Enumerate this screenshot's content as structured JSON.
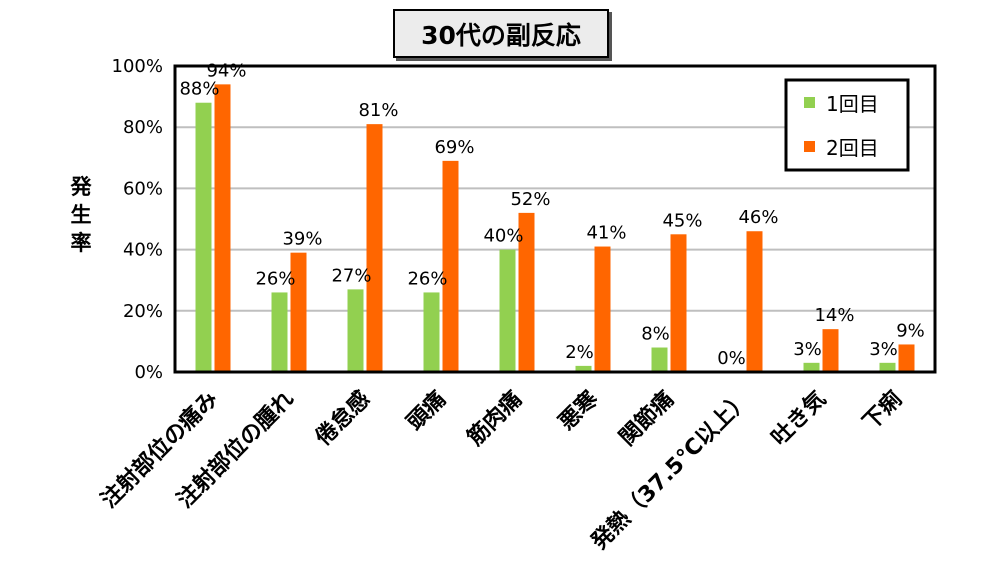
{
  "chart_data": {
    "type": "bar",
    "title": "30代の副反応",
    "ylabel": "発生率",
    "ylim": [
      0,
      1.0
    ],
    "yticks": [
      "0%",
      "20%",
      "40%",
      "60%",
      "80%",
      "100%"
    ],
    "legend_position": "top-right",
    "categories": [
      "注射部位の痛み",
      "注射部位の腫れ",
      "倦怠感",
      "頭痛",
      "筋肉痛",
      "悪寒",
      "関節痛",
      "発熱（37.5℃以上）",
      "吐き気",
      "下痢"
    ],
    "series": [
      {
        "name": "1回目",
        "color": "#92d050",
        "values": [
          0.88,
          0.26,
          0.27,
          0.26,
          0.4,
          0.02,
          0.08,
          0.0,
          0.03,
          0.03
        ],
        "labels": [
          "88%",
          "26%",
          "27%",
          "26%",
          "40%",
          "2%",
          "8%",
          "0%",
          "3%",
          "3%"
        ]
      },
      {
        "name": "2回目",
        "color": "#ff6600",
        "values": [
          0.94,
          0.39,
          0.81,
          0.69,
          0.52,
          0.41,
          0.45,
          0.46,
          0.14,
          0.09
        ],
        "labels": [
          "94%",
          "39%",
          "81%",
          "69%",
          "52%",
          "41%",
          "45%",
          "46%",
          "14%",
          "9%"
        ]
      }
    ]
  }
}
